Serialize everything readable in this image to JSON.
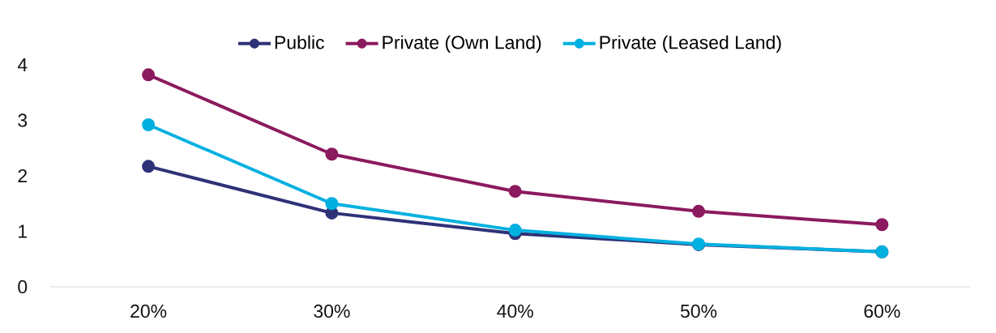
{
  "chart_data": {
    "type": "line",
    "categories": [
      "20%",
      "30%",
      "40%",
      "50%",
      "60%"
    ],
    "series": [
      {
        "name": "Public",
        "color": "#2e3277",
        "values": [
          2.17,
          1.33,
          0.96,
          0.76,
          0.63
        ]
      },
      {
        "name": "Private (Own Land)",
        "color": "#8b1a5e",
        "values": [
          3.82,
          2.39,
          1.72,
          1.36,
          1.12
        ]
      },
      {
        "name": "Private (Leased Land)",
        "color": "#00b0e0",
        "values": [
          2.92,
          1.5,
          1.02,
          0.77,
          0.63
        ]
      }
    ],
    "ylim": [
      0,
      4
    ],
    "yticks": [
      0,
      1,
      2,
      3,
      4
    ],
    "grid": false,
    "legend": "top",
    "marker": "circle",
    "line_style": "solid"
  }
}
